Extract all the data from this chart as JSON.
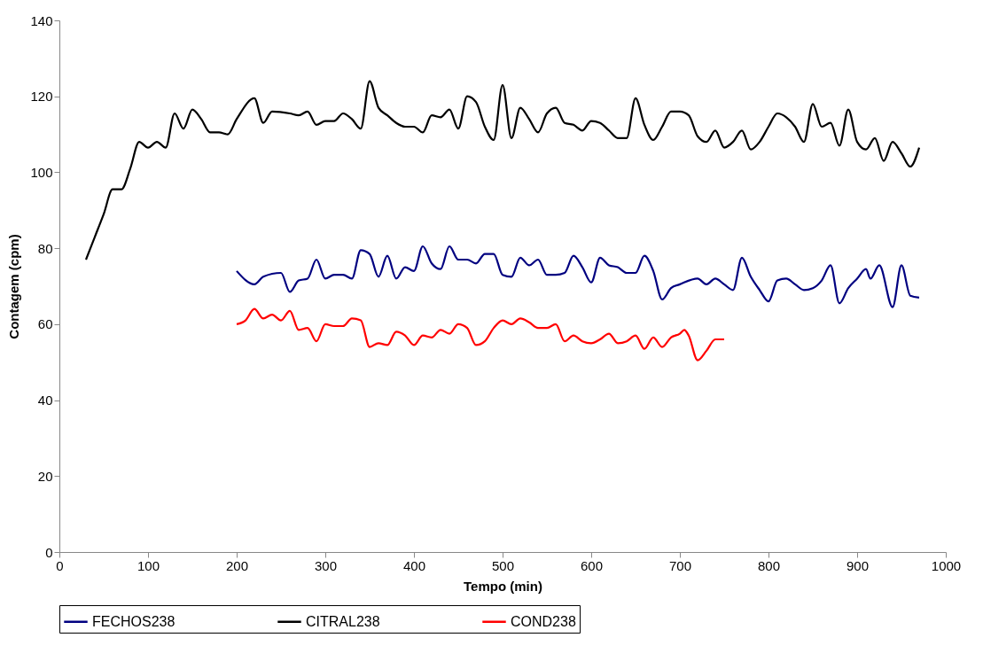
{
  "chart_data": {
    "type": "line",
    "xlabel": "Tempo (min)",
    "ylabel": "Contagem (cpm)",
    "xlim": [
      0,
      1000
    ],
    "xticks": [
      0,
      100,
      200,
      300,
      400,
      500,
      600,
      700,
      800,
      900,
      1000
    ],
    "ylim": [
      0,
      140
    ],
    "yticks": [
      0,
      20,
      40,
      60,
      80,
      100,
      120,
      140
    ],
    "grid": false,
    "legend": "bottom",
    "marker": "none",
    "line_style": "solid",
    "series": [
      {
        "name": "FECHOS238",
        "color": "#000080",
        "x": [
          200,
          220,
          230,
          250,
          260,
          270,
          280,
          290,
          300,
          310,
          320,
          330,
          340,
          350,
          360,
          370,
          380,
          390,
          400,
          410,
          420,
          430,
          440,
          450,
          460,
          470,
          480,
          490,
          500,
          510,
          520,
          530,
          540,
          550,
          560,
          570,
          580,
          590,
          600,
          610,
          620,
          630,
          640,
          650,
          660,
          670,
          680,
          690,
          700,
          720,
          730,
          740,
          750,
          760,
          770,
          780,
          790,
          800,
          810,
          820,
          830,
          840,
          850,
          860,
          870,
          880,
          890,
          900,
          910,
          915,
          925,
          940,
          950,
          960,
          970
        ],
        "values": [
          74,
          70.5,
          72.5,
          73.5,
          68.5,
          71.5,
          72,
          77,
          72,
          73,
          73,
          72,
          79.5,
          78.5,
          72.5,
          78,
          72,
          75,
          74,
          80.5,
          76,
          74.5,
          80.5,
          77,
          77,
          76,
          78.5,
          78.5,
          73,
          72.5,
          77.5,
          75.5,
          77,
          73,
          73,
          73.5,
          78,
          75,
          71,
          77.5,
          75.5,
          75,
          73.5,
          73.5,
          78,
          74,
          66.5,
          69.5,
          70.5,
          72,
          70.5,
          72,
          70.5,
          69,
          77.5,
          72.5,
          69,
          66,
          71.5,
          72,
          70.5,
          69,
          69.5,
          71.5,
          75.5,
          65.5,
          69.5,
          72,
          74.5,
          72,
          75.5,
          64.5,
          75.5,
          67.5,
          67
        ]
      },
      {
        "name": "CITRAL238",
        "color": "#000000",
        "x": [
          30,
          40,
          50,
          60,
          70,
          80,
          90,
          100,
          110,
          120,
          130,
          140,
          150,
          160,
          170,
          180,
          190,
          200,
          220,
          230,
          240,
          260,
          270,
          280,
          290,
          300,
          310,
          320,
          330,
          340,
          350,
          360,
          370,
          380,
          390,
          400,
          410,
          420,
          430,
          440,
          450,
          460,
          470,
          480,
          490,
          500,
          510,
          520,
          530,
          540,
          550,
          560,
          570,
          580,
          590,
          600,
          610,
          620,
          630,
          640,
          650,
          660,
          670,
          680,
          690,
          700,
          710,
          720,
          730,
          740,
          750,
          760,
          770,
          780,
          790,
          800,
          810,
          820,
          830,
          840,
          850,
          860,
          870,
          880,
          890,
          900,
          910,
          920,
          930,
          940,
          950,
          960,
          970
        ],
        "values": [
          77,
          83,
          89,
          95.5,
          95.5,
          101,
          108,
          106.5,
          108,
          106.5,
          115.5,
          111.5,
          116.5,
          114,
          110.5,
          110.5,
          110,
          114,
          119.5,
          113,
          116,
          115.5,
          115,
          116,
          112.5,
          113.5,
          113.5,
          115.5,
          114,
          111.5,
          124,
          117,
          115,
          113,
          112,
          112,
          110.5,
          115,
          114.5,
          116.5,
          111.5,
          120,
          118.5,
          112,
          108.5,
          123,
          109,
          117,
          114,
          110.5,
          115.5,
          117,
          113,
          112.5,
          111,
          113.5,
          113,
          111,
          109,
          109,
          119.5,
          112.5,
          108.5,
          112,
          116,
          116,
          115,
          109.5,
          108,
          111,
          106.5,
          108,
          111,
          106,
          108,
          112,
          115.5,
          114.5,
          112,
          108,
          118,
          112,
          113,
          107,
          116.5,
          108,
          106,
          109,
          103,
          108,
          105,
          101.5,
          106.5
        ]
      },
      {
        "name": "COND238",
        "color": "#ff0000",
        "x": [
          200,
          210,
          220,
          230,
          240,
          250,
          260,
          270,
          280,
          290,
          300,
          310,
          320,
          330,
          340,
          350,
          360,
          370,
          380,
          390,
          400,
          410,
          420,
          430,
          440,
          450,
          460,
          470,
          480,
          490,
          500,
          510,
          520,
          530,
          540,
          550,
          560,
          570,
          580,
          590,
          600,
          610,
          620,
          630,
          640,
          650,
          660,
          670,
          680,
          690,
          700,
          705,
          710,
          720,
          730,
          740,
          750
        ],
        "values": [
          60,
          61,
          64,
          61.5,
          62.5,
          61,
          63.5,
          58.5,
          59,
          55.5,
          60,
          59.5,
          59.5,
          61.5,
          61,
          54,
          55,
          54.5,
          58,
          57,
          54.5,
          57,
          56.5,
          58.5,
          57.5,
          60,
          59,
          54.5,
          55.5,
          59,
          61,
          60,
          61.5,
          60.5,
          59,
          59,
          60,
          55.5,
          57,
          55.5,
          55,
          56,
          57.5,
          55,
          55.5,
          57,
          53.5,
          56.5,
          54,
          56.5,
          57.5,
          58.5,
          57,
          50.5,
          53,
          56,
          56
        ]
      }
    ]
  }
}
